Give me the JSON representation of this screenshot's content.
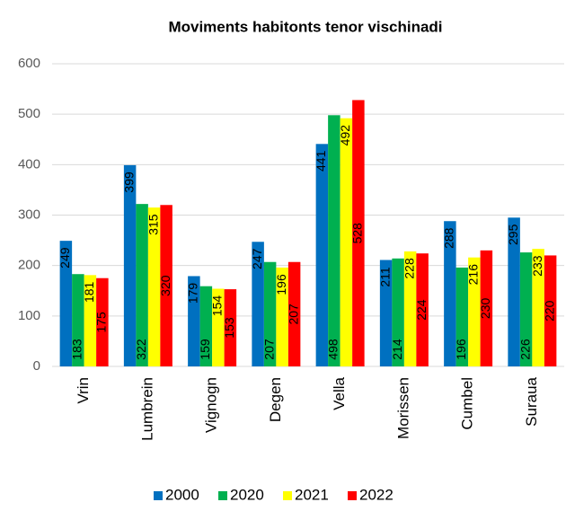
{
  "chart_data": {
    "type": "bar",
    "title": "Moviments habitonts tenor vischinadi",
    "categories": [
      "Vrin",
      "Lumbrein",
      "Vignogn",
      "Degen",
      "Vella",
      "Morissen",
      "Cumbel",
      "Suraua"
    ],
    "series": [
      {
        "name": "2000",
        "color": "#0070c0",
        "label_position": "inside_end",
        "values": [
          249,
          399,
          179,
          247,
          441,
          211,
          288,
          295
        ]
      },
      {
        "name": "2020",
        "color": "#00b050",
        "label_position": "inside_base",
        "values": [
          183,
          322,
          159,
          207,
          498,
          214,
          196,
          226
        ]
      },
      {
        "name": "2021",
        "color": "#ffff00",
        "label_position": "inside_end",
        "values": [
          181,
          315,
          154,
          196,
          492,
          228,
          216,
          233
        ]
      },
      {
        "name": "2022",
        "color": "#ff0000",
        "label_position": "center",
        "values": [
          175,
          320,
          153,
          207,
          528,
          224,
          230,
          220
        ]
      }
    ],
    "ylim": [
      0,
      600
    ],
    "yticks": [
      0,
      100,
      200,
      300,
      400,
      500,
      600
    ],
    "grid": true,
    "legend": "bottom"
  }
}
